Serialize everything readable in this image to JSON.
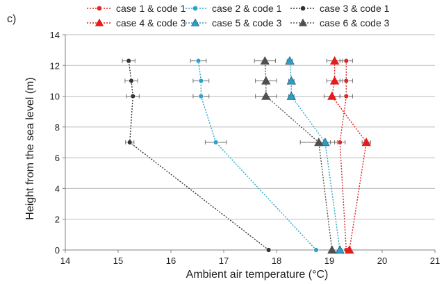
{
  "panel_label": "c)",
  "colors": {
    "case_1_code_1": "#d62a2a",
    "case_2_code_1": "#28a3c9",
    "case_3_code_1": "#333333",
    "case_4_code_3": "#e21d1d",
    "case_5_code_3": "#2aa0c8",
    "case_6_code_3": "#505050"
  },
  "chart_data": {
    "type": "scatter",
    "xlabel": "Ambient air temperature (°C)",
    "ylabel": "Height from the sea level (m)",
    "xlim": [
      14,
      21
    ],
    "ylim": [
      0,
      14
    ],
    "x_ticks": [
      "14",
      "15",
      "16",
      "17",
      "18",
      "19",
      "20",
      "21"
    ],
    "y_ticks": [
      "0",
      "2",
      "4",
      "6",
      "8",
      "10",
      "12",
      "14"
    ],
    "grid": "horizontal",
    "legend_position": "top",
    "series": [
      {
        "name": "case 1 & code 1",
        "marker": "circle",
        "color": "#d62a2a",
        "points": [
          {
            "x": 19.32,
            "y": 0,
            "err": 0
          },
          {
            "x": 19.2,
            "y": 7,
            "err": 0.1
          },
          {
            "x": 19.32,
            "y": 10,
            "err": 0.12
          },
          {
            "x": 19.32,
            "y": 11,
            "err": 0.12
          },
          {
            "x": 19.32,
            "y": 12.3,
            "err": 0.12
          }
        ]
      },
      {
        "name": "case 2 & code 1",
        "marker": "circle",
        "color": "#28a3c9",
        "points": [
          {
            "x": 18.75,
            "y": 0,
            "err": 0
          },
          {
            "x": 16.85,
            "y": 7,
            "err": 0.2
          },
          {
            "x": 16.57,
            "y": 10,
            "err": 0.15
          },
          {
            "x": 16.57,
            "y": 11,
            "err": 0.15
          },
          {
            "x": 16.52,
            "y": 12.3,
            "err": 0.15
          }
        ]
      },
      {
        "name": "case 3 & code 1",
        "marker": "circle",
        "color": "#333333",
        "points": [
          {
            "x": 17.85,
            "y": 0,
            "err": 0
          },
          {
            "x": 15.22,
            "y": 7,
            "err": 0.08
          },
          {
            "x": 15.28,
            "y": 10,
            "err": 0.12
          },
          {
            "x": 15.25,
            "y": 11,
            "err": 0.12
          },
          {
            "x": 15.2,
            "y": 12.3,
            "err": 0.12
          }
        ]
      },
      {
        "name": "case 4 & code 3",
        "marker": "triangle",
        "color": "#e21d1d",
        "points": [
          {
            "x": 19.38,
            "y": 0,
            "err": 0
          },
          {
            "x": 19.7,
            "y": 7,
            "err": 0.08
          },
          {
            "x": 19.05,
            "y": 10,
            "err": 0.15
          },
          {
            "x": 19.1,
            "y": 11,
            "err": 0.15
          },
          {
            "x": 19.1,
            "y": 12.3,
            "err": 0.15
          }
        ]
      },
      {
        "name": "case 5 & code 3",
        "marker": "triangle",
        "color": "#2aa0c8",
        "points": [
          {
            "x": 19.2,
            "y": 0,
            "err": 0
          },
          {
            "x": 18.92,
            "y": 7,
            "err": 0.1
          },
          {
            "x": 18.28,
            "y": 10,
            "err": 0.05
          },
          {
            "x": 18.28,
            "y": 11,
            "err": 0.05
          },
          {
            "x": 18.25,
            "y": 12.3,
            "err": 0.05
          }
        ]
      },
      {
        "name": "case 6 & code 3",
        "marker": "triangle",
        "color": "#505050",
        "points": [
          {
            "x": 19.05,
            "y": 0,
            "err": 0
          },
          {
            "x": 18.8,
            "y": 7,
            "err": 0.35
          },
          {
            "x": 17.8,
            "y": 10,
            "err": 0.2
          },
          {
            "x": 17.8,
            "y": 11,
            "err": 0.2
          },
          {
            "x": 17.78,
            "y": 12.3,
            "err": 0.2
          }
        ]
      }
    ]
  }
}
